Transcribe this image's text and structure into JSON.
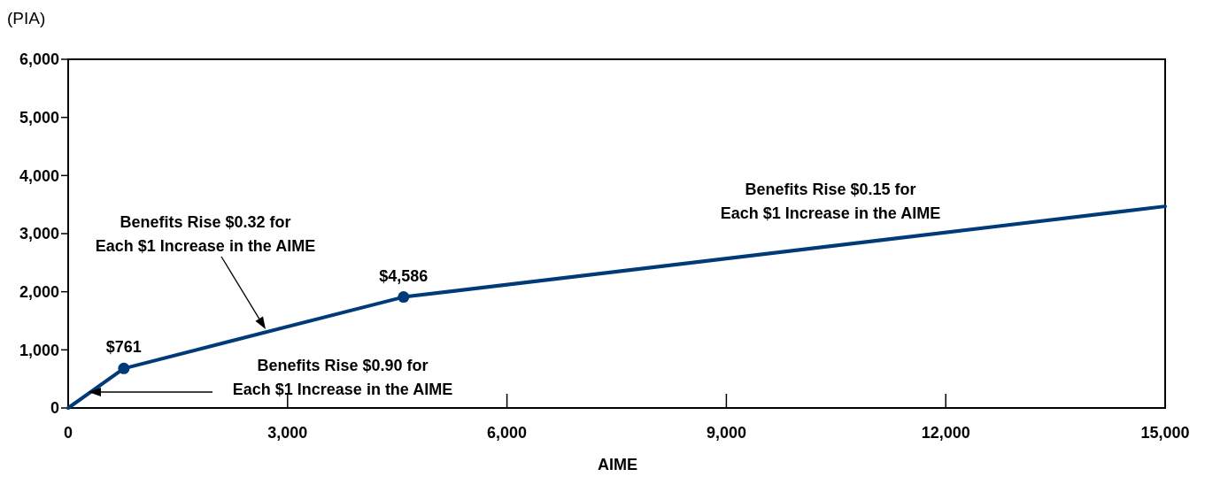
{
  "chart_data": {
    "type": "line",
    "ylabel": "(PIA)",
    "xlabel": "AIME",
    "xlim": [
      0,
      15000
    ],
    "xticks": [
      {
        "value": 0,
        "label": "0"
      },
      {
        "value": 3000,
        "label": "3,000"
      },
      {
        "value": 6000,
        "label": "6,000"
      },
      {
        "value": 9000,
        "label": "9,000"
      },
      {
        "value": 12000,
        "label": "12,000"
      },
      {
        "value": 15000,
        "label": "15,000"
      }
    ],
    "ylim": [
      0,
      6000
    ],
    "yticks": [
      {
        "value": 0,
        "label": "0"
      },
      {
        "value": 1000,
        "label": "1,000"
      },
      {
        "value": 2000,
        "label": "2,000"
      },
      {
        "value": 3000,
        "label": "3,000"
      },
      {
        "value": 4000,
        "label": "4,000"
      },
      {
        "value": 5000,
        "label": "5,000"
      },
      {
        "value": 6000,
        "label": "6,000"
      }
    ],
    "grid": false,
    "series": [
      {
        "type": "line",
        "color": "#003a78",
        "marker": "none",
        "x": [
          0,
          761,
          4586,
          15000
        ],
        "values": [
          0,
          680,
          1910,
          3470
        ]
      },
      {
        "type": "scatter",
        "color": "#003a78",
        "marker": "circle",
        "x": [
          761,
          4586
        ],
        "values": [
          680,
          1910
        ]
      }
    ],
    "annotations": [
      {
        "text": "$761",
        "x": 761,
        "y": 680
      },
      {
        "text": "$4,586",
        "x": 4586,
        "y": 1910
      },
      "Benefits Rise $0.32 for\nEach $1 Increase in the AIME",
      "Benefits Rise $0.90 for\nEach $1 Increase in the AIME",
      "Benefits Rise $0.15 for\nEach $1 Increase in the AIME"
    ]
  }
}
